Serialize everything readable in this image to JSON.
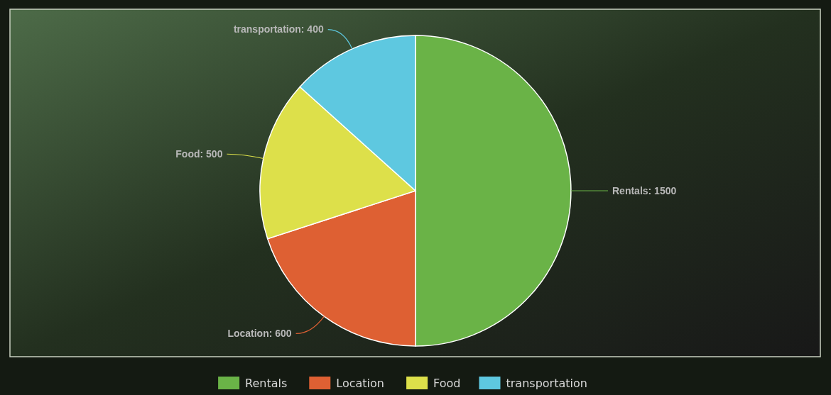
{
  "chart_data": {
    "type": "pie",
    "categories": [
      "Rentals",
      "Location",
      "Food",
      "transportation"
    ],
    "values": [
      1500,
      600,
      500,
      400
    ],
    "value_labels": [
      "Rentals: 1500",
      "Location: 600",
      "Food: 500",
      "transportation: 400"
    ],
    "colors": [
      "#6ab347",
      "#de6033",
      "#dde04a",
      "#5ec8e0"
    ],
    "legend": "bottom"
  }
}
